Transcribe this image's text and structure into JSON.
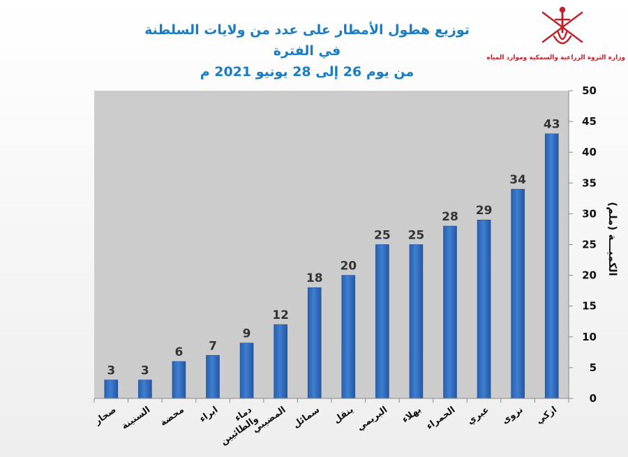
{
  "header": {
    "title_line1": "توزيع هطول الأمطار على عدد من ولايات السلطنة في الفترة",
    "title_line2": "من يوم 26 إلى 28 يونيو 2021 م",
    "logo_caption": "وزارة الثروة الزراعية والسمكية وموارد المياه",
    "logo_color": "#c0202a",
    "title_color": "#1b7cc1"
  },
  "chart_data": {
    "type": "bar",
    "categories": [
      "صحار",
      "السنينة",
      "محضة",
      "ابراء",
      "دماء والطائيين",
      "المضيبي",
      "سمائل",
      "ينقل",
      "البريمي",
      "بهلاء",
      "الحمراء",
      "عبري",
      "نزوى",
      "ازكي"
    ],
    "values": [
      3,
      3,
      6,
      7,
      9,
      12,
      18,
      20,
      25,
      25,
      28,
      29,
      34,
      43
    ],
    "title": "",
    "xlabel": "",
    "ylabel": "الكميـــة (ملم)",
    "ylim": [
      0,
      50
    ],
    "yticks": [
      0,
      5,
      10,
      15,
      20,
      25,
      30,
      35,
      40,
      45,
      50
    ],
    "y_axis_position": "right",
    "grid": false,
    "legend": "none",
    "bar_color": "#3f7ed1",
    "plot_background": "#cccccc"
  }
}
